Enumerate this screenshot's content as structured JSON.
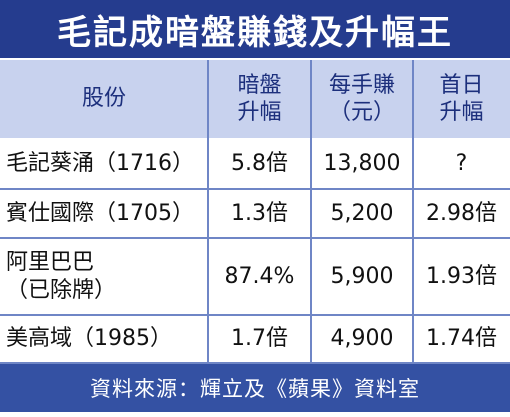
{
  "title": "毛記成暗盤賺錢及升幅王",
  "table": {
    "header": [
      [
        "股份"
      ],
      [
        "暗盤",
        "升幅"
      ],
      [
        "每手賺",
        "（元）"
      ],
      [
        "首日",
        "升幅"
      ]
    ],
    "rows": [
      [
        [
          "毛記葵涌（1716）"
        ],
        [
          "5.8倍"
        ],
        [
          "13,800"
        ],
        [
          "?"
        ]
      ],
      [
        [
          "賓仕國際（1705）"
        ],
        [
          "1.3倍"
        ],
        [
          "5,200"
        ],
        [
          "2.98倍"
        ]
      ],
      [
        [
          "阿里巴巴",
          "（已除牌）"
        ],
        [
          "87.4%"
        ],
        [
          "5,900"
        ],
        [
          "1.93倍"
        ]
      ],
      [
        [
          "美高域（1985）"
        ],
        [
          "1.7倍"
        ],
        [
          "4,900"
        ],
        [
          "1.74倍"
        ]
      ]
    ]
  },
  "footer": "資料來源：輝立及《蘋果》資料室"
}
